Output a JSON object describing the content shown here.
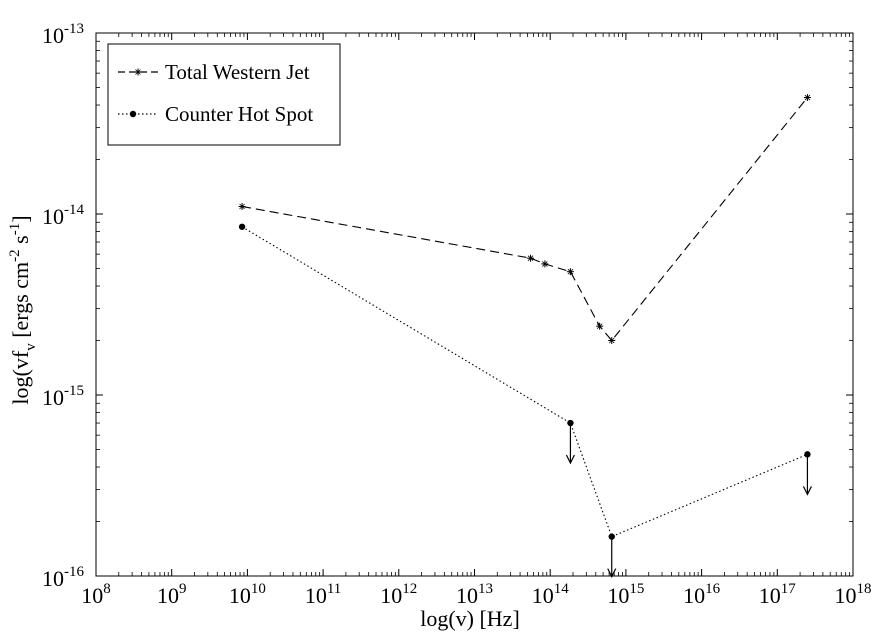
{
  "chart_data": {
    "type": "line",
    "xlabel": "log(v) [Hz]",
    "ylabel": "log(vf_v [ergs cm^-2 s^-1])",
    "xscale": "log",
    "yscale": "log",
    "xlim": [
      100000000.0,
      1e+18
    ],
    "ylim": [
      1e-16,
      1e-13
    ],
    "x_ticks": [
      {
        "base": "10",
        "exp": "8",
        "value": 100000000.0
      },
      {
        "base": "10",
        "exp": "9",
        "value": 1000000000.0
      },
      {
        "base": "10",
        "exp": "10",
        "value": 10000000000.0
      },
      {
        "base": "10",
        "exp": "11",
        "value": 100000000000.0
      },
      {
        "base": "10",
        "exp": "12",
        "value": 1000000000000.0
      },
      {
        "base": "10",
        "exp": "13",
        "value": 10000000000000.0
      },
      {
        "base": "10",
        "exp": "14",
        "value": 100000000000000.0
      },
      {
        "base": "10",
        "exp": "15",
        "value": 1000000000000000.0
      },
      {
        "base": "10",
        "exp": "16",
        "value": 1e+16
      },
      {
        "base": "10",
        "exp": "17",
        "value": 1e+17
      },
      {
        "base": "10",
        "exp": "18",
        "value": 1e+18
      }
    ],
    "y_ticks": [
      {
        "base": "10",
        "exp": "-13",
        "value": 1e-13
      },
      {
        "base": "10",
        "exp": "-14",
        "value": 1e-14
      },
      {
        "base": "10",
        "exp": "-15",
        "value": 1e-15
      },
      {
        "base": "10",
        "exp": "-16",
        "value": 1e-16
      }
    ],
    "legend_position": "top-left",
    "grid": false,
    "series": [
      {
        "name": "Total Western Jet",
        "style": "dashed",
        "marker": "star",
        "color": "#000000",
        "x": [
          8500000000.0,
          55000000000000.0,
          85000000000000.0,
          185000000000000.0,
          450000000000000.0,
          650000000000000.0,
          2.5e+17
        ],
        "y": [
          1.1e-14,
          5.7e-15,
          5.3e-15,
          4.8e-15,
          2.4e-15,
          2e-15,
          4.4e-14
        ]
      },
      {
        "name": "Counter Hot Spot",
        "style": "dotted",
        "marker": "dot",
        "color": "#000000",
        "x": [
          8500000000.0,
          185000000000000.0,
          650000000000000.0,
          2.5e+17
        ],
        "y": [
          8.5e-15,
          7e-16,
          1.65e-16,
          4.7e-16
        ],
        "upper_limits": [
          false,
          true,
          true,
          true
        ]
      }
    ]
  }
}
